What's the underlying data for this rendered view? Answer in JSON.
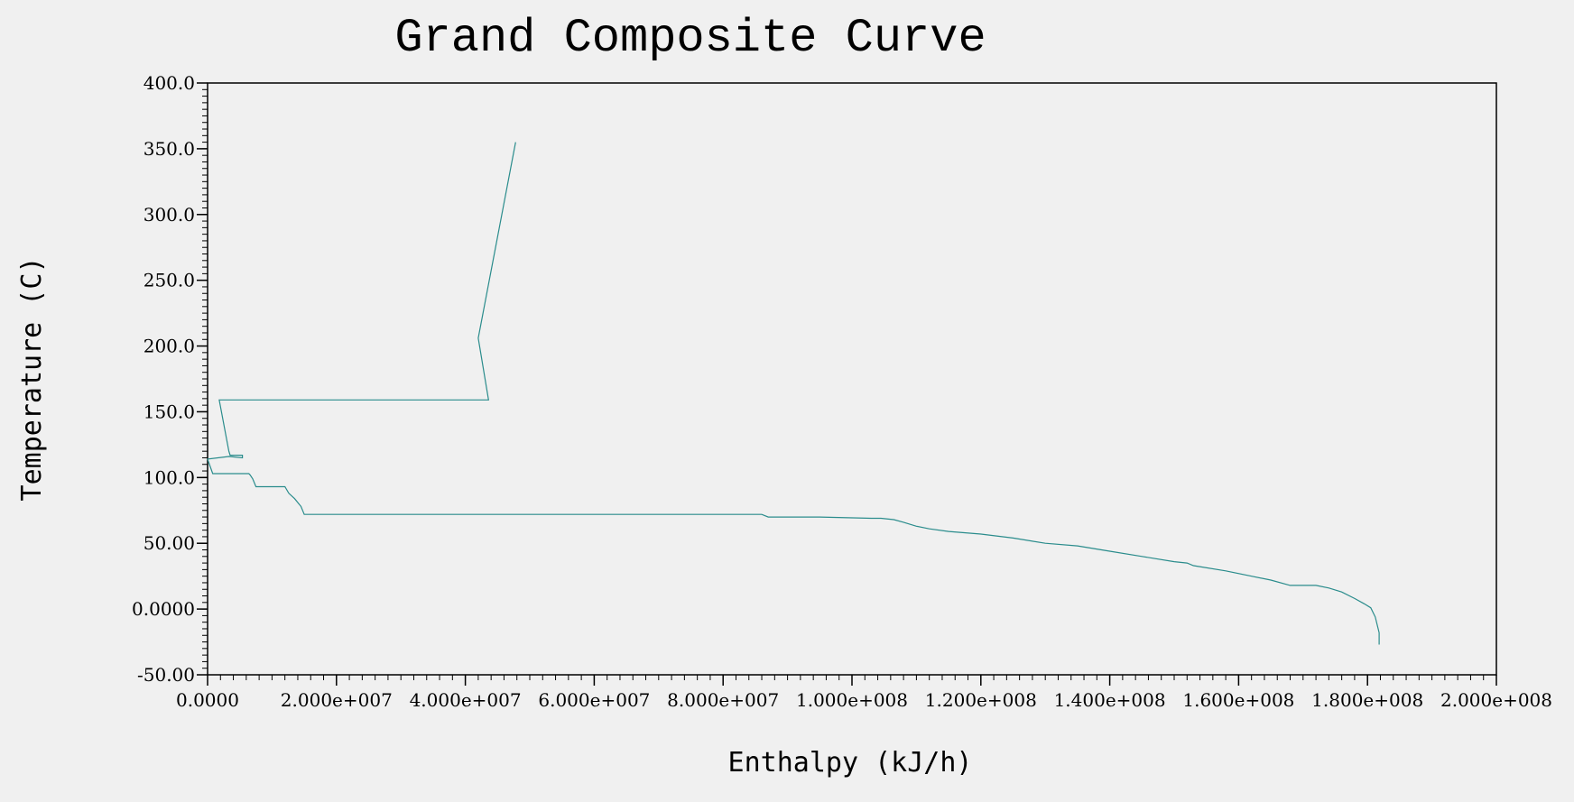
{
  "chart_data": {
    "type": "line",
    "title": "Grand Composite Curve",
    "xlabel": "Enthalpy (kJ/h)",
    "ylabel": "Temperature (C)",
    "xlim": [
      0,
      200000000
    ],
    "ylim": [
      -50,
      400
    ],
    "x_ticks": [
      0,
      20000000,
      40000000,
      60000000,
      80000000,
      100000000,
      120000000,
      140000000,
      160000000,
      180000000,
      200000000
    ],
    "x_tick_labels": [
      "0.0000",
      "2.000e+007",
      "4.000e+007",
      "6.000e+007",
      "8.000e+007",
      "1.000e+008",
      "1.200e+008",
      "1.400e+008",
      "1.600e+008",
      "1.800e+008",
      "2.000e+008"
    ],
    "y_ticks": [
      -50,
      0,
      50,
      100,
      150,
      200,
      250,
      300,
      350,
      400
    ],
    "y_tick_labels": [
      "-50.00",
      "0.0000",
      "50.00",
      "100.0",
      "150.0",
      "200.0",
      "250.0",
      "300.0",
      "350.0",
      "400.0"
    ],
    "grid": false,
    "line_color": "#2a8c8c",
    "series": [
      {
        "name": "",
        "x": [
          47800000,
          42000000,
          43600000,
          1800000,
          3300000,
          3500000,
          5400000,
          5400000,
          3300000,
          0,
          800000,
          6400000,
          6600000,
          7000000,
          7500000,
          12000000,
          12600000,
          13500000,
          14500000,
          15000000,
          85500000,
          86000000,
          87000000,
          95000000,
          103000000,
          104500000,
          106500000,
          108000000,
          110000000,
          112000000,
          115000000,
          120000000,
          125000000,
          130000000,
          135000000,
          140000000,
          145000000,
          150000000,
          152000000,
          153000000,
          158000000,
          162000000,
          165000000,
          168000000,
          172000000,
          174000000,
          176000000,
          178000000,
          179500000,
          180500000,
          181200000,
          181800000,
          181800000
        ],
        "y": [
          355,
          206,
          159,
          159,
          120,
          117,
          117,
          115,
          116,
          114,
          103,
          103,
          102,
          99,
          93,
          93,
          88,
          84,
          78,
          72,
          72,
          72,
          70,
          70,
          69,
          69,
          68,
          66,
          63,
          61,
          59,
          57,
          54,
          50,
          48,
          44,
          40,
          36,
          35,
          33,
          29,
          25,
          22,
          18,
          18,
          16,
          13,
          8,
          4,
          1,
          -6,
          -18,
          -27
        ]
      }
    ]
  }
}
